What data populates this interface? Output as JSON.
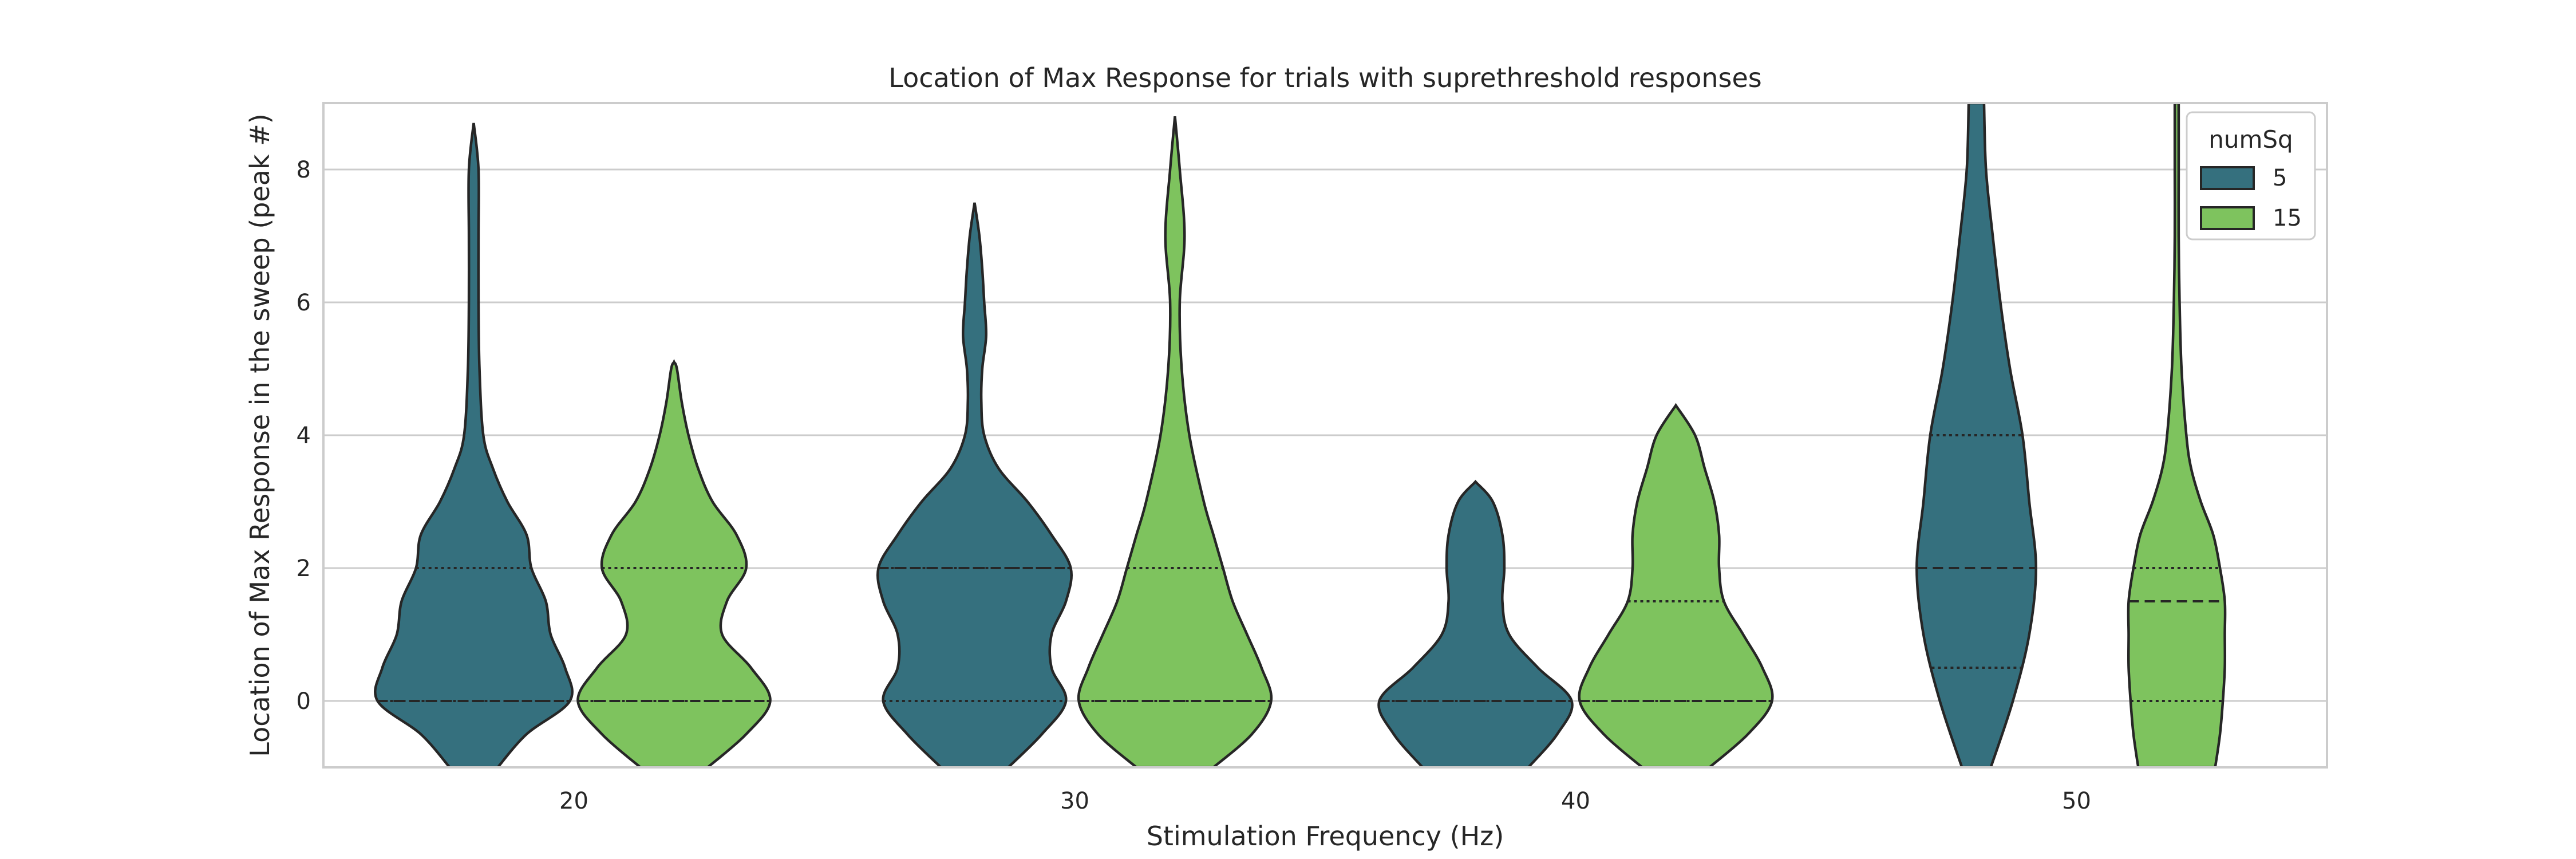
{
  "chart_data": {
    "type": "violin",
    "title": "Location of Max Response for trials with suprethreshold responses",
    "xlabel": "Stimulation Frequency (Hz)",
    "ylabel": "Location of Max Response in the sweep (peak #)",
    "categories": [
      "20",
      "30",
      "40",
      "50"
    ],
    "ylim": [
      -1,
      9
    ],
    "yticks": [
      0,
      2,
      4,
      6,
      8
    ],
    "grid": "horizontal",
    "legend": {
      "title": "numSq",
      "placement": "top-right"
    },
    "series": [
      {
        "name": "5",
        "color": "#35707e",
        "violins": [
          {
            "category": "20",
            "q1": 0,
            "median": 0,
            "q3": 2,
            "profile": [
              [
                -1,
                0.25
              ],
              [
                -0.5,
                0.55
              ],
              [
                0,
                1.0
              ],
              [
                0.5,
                0.95
              ],
              [
                1,
                0.8
              ],
              [
                1.5,
                0.75
              ],
              [
                2,
                0.6
              ],
              [
                2.5,
                0.55
              ],
              [
                3,
                0.35
              ],
              [
                3.5,
                0.2
              ],
              [
                4,
                0.1
              ],
              [
                5,
                0.06
              ],
              [
                6,
                0.05
              ],
              [
                7,
                0.05
              ],
              [
                8,
                0.05
              ],
              [
                8.7,
                0.0
              ]
            ]
          },
          {
            "category": "30",
            "q1": 0,
            "median": 2,
            "q3": 2,
            "profile": [
              [
                -1,
                0.35
              ],
              [
                -0.5,
                0.7
              ],
              [
                0,
                0.95
              ],
              [
                0.5,
                0.8
              ],
              [
                1,
                0.8
              ],
              [
                1.5,
                0.95
              ],
              [
                2,
                1.0
              ],
              [
                2.5,
                0.8
              ],
              [
                3,
                0.55
              ],
              [
                3.5,
                0.25
              ],
              [
                4,
                0.1
              ],
              [
                4.5,
                0.07
              ],
              [
                5,
                0.08
              ],
              [
                5.5,
                0.12
              ],
              [
                6,
                0.1
              ],
              [
                6.5,
                0.08
              ],
              [
                7,
                0.05
              ],
              [
                7.5,
                0.0
              ]
            ]
          },
          {
            "category": "40",
            "q1": 0,
            "median": 0,
            "q3": 0,
            "profile": [
              [
                -1,
                0.55
              ],
              [
                -0.5,
                0.85
              ],
              [
                0,
                1.0
              ],
              [
                0.5,
                0.65
              ],
              [
                1,
                0.35
              ],
              [
                1.5,
                0.28
              ],
              [
                2,
                0.3
              ],
              [
                2.5,
                0.28
              ],
              [
                3,
                0.18
              ],
              [
                3.3,
                0.0
              ]
            ]
          },
          {
            "category": "50",
            "q1": 0.5,
            "median": 2,
            "q3": 4,
            "profile": [
              [
                -1,
                0.15
              ],
              [
                0,
                0.38
              ],
              [
                1,
                0.55
              ],
              [
                2,
                0.62
              ],
              [
                3,
                0.55
              ],
              [
                4,
                0.48
              ],
              [
                5,
                0.35
              ],
              [
                6,
                0.25
              ],
              [
                7,
                0.17
              ],
              [
                8,
                0.1
              ],
              [
                9,
                0.08
              ]
            ]
          }
        ]
      },
      {
        "name": "15",
        "color": "#7ec35e",
        "violins": [
          {
            "category": "20",
            "q1": 0,
            "median": 0,
            "q3": 2,
            "profile": [
              [
                -1,
                0.35
              ],
              [
                -0.5,
                0.75
              ],
              [
                0,
                1.0
              ],
              [
                0.5,
                0.8
              ],
              [
                1,
                0.5
              ],
              [
                1.5,
                0.55
              ],
              [
                2,
                0.75
              ],
              [
                2.5,
                0.65
              ],
              [
                3,
                0.4
              ],
              [
                3.5,
                0.25
              ],
              [
                4,
                0.15
              ],
              [
                4.5,
                0.08
              ],
              [
                5,
                0.03
              ],
              [
                5.1,
                0.0
              ]
            ]
          },
          {
            "category": "30",
            "q1": 0,
            "median": 0,
            "q3": 2,
            "profile": [
              [
                -1,
                0.4
              ],
              [
                -0.5,
                0.8
              ],
              [
                0,
                1.0
              ],
              [
                0.5,
                0.9
              ],
              [
                1,
                0.75
              ],
              [
                1.5,
                0.6
              ],
              [
                2,
                0.5
              ],
              [
                2.5,
                0.4
              ],
              [
                3,
                0.3
              ],
              [
                4,
                0.15
              ],
              [
                5,
                0.07
              ],
              [
                6,
                0.05
              ],
              [
                7,
                0.1
              ],
              [
                8,
                0.05
              ],
              [
                8.8,
                0.0
              ]
            ]
          },
          {
            "category": "40",
            "q1": 0,
            "median": 0,
            "q3": 1.5,
            "profile": [
              [
                -1,
                0.35
              ],
              [
                -0.5,
                0.75
              ],
              [
                0,
                1.0
              ],
              [
                0.5,
                0.9
              ],
              [
                1,
                0.7
              ],
              [
                1.5,
                0.5
              ],
              [
                2,
                0.45
              ],
              [
                2.5,
                0.45
              ],
              [
                3,
                0.4
              ],
              [
                3.5,
                0.3
              ],
              [
                4,
                0.2
              ],
              [
                4.45,
                0.0
              ]
            ]
          },
          {
            "category": "50",
            "q1": 0,
            "median": 1.5,
            "q3": 2,
            "profile": [
              [
                -1,
                0.4
              ],
              [
                -0.5,
                0.45
              ],
              [
                0,
                0.48
              ],
              [
                0.5,
                0.5
              ],
              [
                1,
                0.5
              ],
              [
                1.5,
                0.5
              ],
              [
                2,
                0.45
              ],
              [
                2.5,
                0.38
              ],
              [
                3,
                0.25
              ],
              [
                3.5,
                0.15
              ],
              [
                4,
                0.1
              ],
              [
                5,
                0.05
              ],
              [
                6,
                0.03
              ],
              [
                7,
                0.02
              ],
              [
                8,
                0.02
              ],
              [
                9,
                0.02
              ]
            ]
          }
        ]
      }
    ]
  }
}
